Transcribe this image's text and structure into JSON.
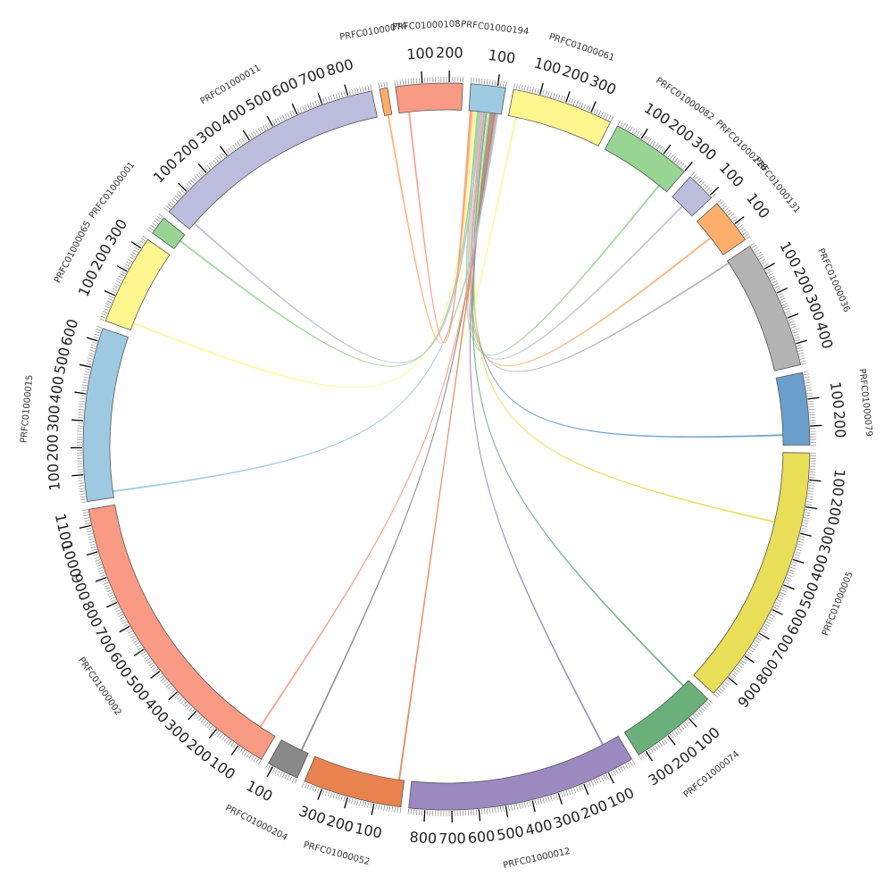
{
  "chart_data": {
    "type": "chord",
    "title": "",
    "tick_major_step": 100,
    "tick_minor_step": 10,
    "segments": [
      {
        "name": "PRFC01000194",
        "length": 130,
        "color": "#9ECAE1"
      },
      {
        "name": "PRFC01000061",
        "length": 380,
        "color": "#FFF68F"
      },
      {
        "name": "PRFC01000082",
        "length": 300,
        "color": "#98D494"
      },
      {
        "name": "PRFC01000226",
        "length": 110,
        "color": "#BCBDDC"
      },
      {
        "name": "PRFC01000131",
        "length": 170,
        "color": "#FDAE6B"
      },
      {
        "name": "PRFC01000036",
        "length": 480,
        "color": "#B3B3B3"
      },
      {
        "name": "PRFC01000079",
        "length": 270,
        "color": "#6A9ECB"
      },
      {
        "name": "PRFC01000005",
        "length": 980,
        "color": "#E8DE57"
      },
      {
        "name": "PRFC01000074",
        "length": 330,
        "color": "#6BB07B"
      },
      {
        "name": "PRFC01000012",
        "length": 860,
        "color": "#9C89C0"
      },
      {
        "name": "PRFC01000052",
        "length": 370,
        "color": "#E8834F"
      },
      {
        "name": "PRFC01000204",
        "length": 120,
        "color": "#8A8A8A"
      },
      {
        "name": "PRFC01000002",
        "length": 1160,
        "color": "#F99A84"
      },
      {
        "name": "PRFC01000015",
        "length": 650,
        "color": "#9ECAE1"
      },
      {
        "name": "PRFC01000065",
        "length": 340,
        "color": "#FFF68F"
      },
      {
        "name": "PRFC01000001",
        "length": 70,
        "color": "#98D494"
      },
      {
        "name": "PRFC01000011",
        "length": 890,
        "color": "#BCBDDC"
      },
      {
        "name": "PRFC01000074b",
        "length": 30,
        "color": "#FDAE6B"
      },
      {
        "name": "PRFC01000108",
        "length": 250,
        "color": "#F99A84"
      }
    ],
    "segment_labels": {
      "PRFC01000074b": "PRFC01000074"
    },
    "links": [
      {
        "from": "PRFC01000194",
        "from_pos": 20,
        "to": "PRFC01000061",
        "to_pos": 30,
        "color": "#FFF68F"
      },
      {
        "from": "PRFC01000194",
        "from_pos": 35,
        "to": "PRFC01000082",
        "to_pos": 260,
        "color": "#98D494"
      },
      {
        "from": "PRFC01000194",
        "from_pos": 45,
        "to": "PRFC01000226",
        "to_pos": 55,
        "color": "#BCBDDC"
      },
      {
        "from": "PRFC01000194",
        "from_pos": 55,
        "to": "PRFC01000131",
        "to_pos": 85,
        "color": "#FDAE6B"
      },
      {
        "from": "PRFC01000194",
        "from_pos": 62,
        "to": "PRFC01000036",
        "to_pos": 10,
        "color": "#B3B3B3"
      },
      {
        "from": "PRFC01000194",
        "from_pos": 70,
        "to": "PRFC01000079",
        "to_pos": 230,
        "color": "#6A9ECB"
      },
      {
        "from": "PRFC01000194",
        "from_pos": 78,
        "to": "PRFC01000005",
        "to_pos": 280,
        "color": "#E8DE57"
      },
      {
        "from": "PRFC01000194",
        "from_pos": 86,
        "to": "PRFC01000074",
        "to_pos": 30,
        "color": "#6BB07B"
      },
      {
        "from": "PRFC01000194",
        "from_pos": 92,
        "to": "PRFC01000012",
        "to_pos": 70,
        "color": "#9C89C0"
      },
      {
        "from": "PRFC01000194",
        "from_pos": 98,
        "to": "PRFC01000052",
        "to_pos": 20,
        "color": "#E8834F"
      },
      {
        "from": "PRFC01000194",
        "from_pos": 104,
        "to": "PRFC01000204",
        "to_pos": 30,
        "color": "#8A8A8A"
      },
      {
        "from": "PRFC01000194",
        "from_pos": 110,
        "to": "PRFC01000002",
        "to_pos": 70,
        "color": "#F99A84"
      },
      {
        "from": "PRFC01000194",
        "from_pos": 115,
        "to": "PRFC01000015",
        "to_pos": 25,
        "color": "#9ECAE1"
      },
      {
        "from": "PRFC01000194",
        "from_pos": 26,
        "to": "PRFC01000065",
        "to_pos": 30,
        "color": "#FFF68F"
      },
      {
        "from": "PRFC01000194",
        "from_pos": 40,
        "to": "PRFC01000001",
        "to_pos": 40,
        "color": "#98D494"
      },
      {
        "from": "PRFC01000194",
        "from_pos": 50,
        "to": "PRFC01000011",
        "to_pos": 30,
        "color": "#BCBDDC"
      },
      {
        "from": "PRFC01000194",
        "from_pos": 12,
        "to": "PRFC01000074b",
        "to_pos": 15,
        "color": "#FDAE6B"
      },
      {
        "from": "PRFC01000194",
        "from_pos": 6,
        "to": "PRFC01000108",
        "to_pos": 40,
        "color": "#F99A84"
      }
    ]
  }
}
